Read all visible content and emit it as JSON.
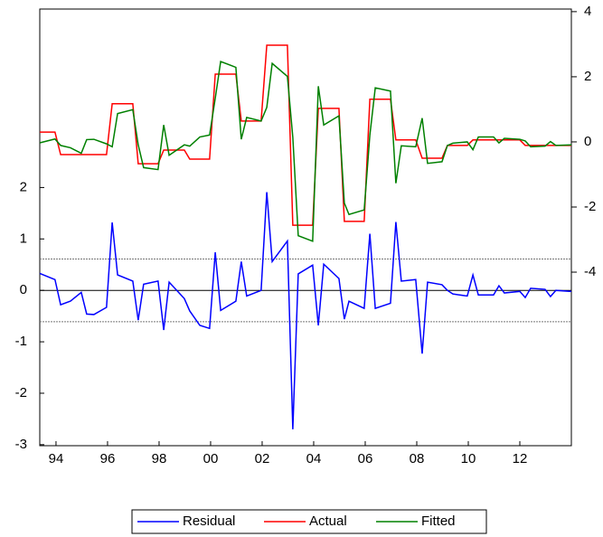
{
  "chart_data": {
    "type": "line",
    "x": [
      1993.87,
      1994.46,
      1994.68,
      1995.06,
      1995.48,
      1995.69,
      1995.97,
      1996.46,
      1996.68,
      1996.89,
      1997.48,
      1997.69,
      1997.9,
      1998.46,
      1998.68,
      1998.89,
      1999.48,
      1999.69,
      2000.08,
      2000.46,
      2000.68,
      2000.89,
      2001.48,
      2001.69,
      2001.9,
      2002.46,
      2002.68,
      2002.89,
      2003.48,
      2003.69,
      2003.9,
      2004.46,
      2004.68,
      2004.89,
      2005.48,
      2005.69,
      2005.87,
      2006.46,
      2006.68,
      2006.89,
      2007.48,
      2007.69,
      2007.9,
      2008.46,
      2008.71,
      2008.92,
      2009.48,
      2009.69,
      2009.9,
      2010.46,
      2010.68,
      2010.89,
      2011.48,
      2011.69,
      2011.9,
      2012.5,
      2012.71,
      2012.92,
      2013.48,
      2013.69,
      2013.9,
      2014.5
    ],
    "series": [
      {
        "name": "Residual",
        "color": "#0000ff",
        "axis": "y",
        "values": [
          0.33,
          0.21,
          -0.28,
          -0.21,
          -0.04,
          -0.46,
          -0.47,
          -0.33,
          1.32,
          0.3,
          0.18,
          -0.58,
          0.12,
          0.18,
          -0.77,
          0.16,
          -0.16,
          -0.4,
          -0.68,
          -0.74,
          0.74,
          -0.39,
          -0.21,
          0.56,
          -0.11,
          0,
          1.91,
          0.56,
          0.96,
          -2.7,
          0.32,
          0.49,
          -0.68,
          0.51,
          0.23,
          -0.56,
          -0.21,
          -0.35,
          1.1,
          -0.35,
          -0.25,
          1.33,
          0.18,
          0.21,
          -1.23,
          0.16,
          0.11,
          0,
          -0.07,
          -0.11,
          0.3,
          -0.09,
          -0.09,
          0.09,
          -0.05,
          -0.02,
          -0.14,
          0.04,
          0.02,
          -0.12,
          0,
          -0.02
        ]
      },
      {
        "name": "Actual",
        "color": "#ff0000",
        "axis": "y2",
        "values": [
          0.3,
          0.3,
          -0.39,
          -0.39,
          -0.39,
          -0.39,
          -0.39,
          -0.39,
          1.17,
          1.17,
          1.17,
          -0.67,
          -0.67,
          -0.67,
          -0.25,
          -0.25,
          -0.25,
          -0.53,
          -0.53,
          -0.53,
          2.08,
          2.08,
          2.08,
          0.64,
          0.64,
          0.64,
          2.97,
          2.97,
          2.97,
          -2.56,
          -2.56,
          -2.56,
          1.03,
          1.03,
          1.03,
          -2.44,
          -2.44,
          -2.44,
          1.31,
          1.31,
          1.31,
          0.06,
          0.06,
          0.06,
          -0.5,
          -0.5,
          -0.5,
          -0.11,
          -0.11,
          -0.11,
          0.06,
          0.06,
          0.06,
          0.06,
          0.06,
          0.06,
          -0.11,
          -0.11,
          -0.11,
          -0.11,
          -0.11,
          -0.11
        ]
      },
      {
        "name": "Fitted",
        "color": "#008000",
        "axis": "y2",
        "values": [
          -0.03,
          0.09,
          -0.11,
          -0.18,
          -0.35,
          0.07,
          0.08,
          -0.06,
          -0.15,
          0.87,
          0.99,
          -0.09,
          -0.79,
          -0.85,
          0.52,
          -0.41,
          -0.09,
          -0.13,
          0.15,
          0.21,
          1.34,
          2.47,
          2.29,
          0.08,
          0.75,
          0.64,
          1.06,
          2.41,
          2.01,
          0.14,
          -2.88,
          -3.05,
          1.71,
          0.52,
          0.8,
          -1.88,
          -2.23,
          -2.09,
          0.21,
          1.66,
          1.56,
          -1.27,
          -0.12,
          -0.15,
          0.73,
          -0.66,
          -0.61,
          -0.11,
          -0.04,
          0,
          -0.24,
          0.15,
          0.15,
          -0.03,
          0.11,
          0.08,
          0.03,
          -0.15,
          -0.13,
          0.01,
          -0.11,
          -0.09
        ]
      }
    ],
    "xlim": [
      1993.87,
      2014.5
    ],
    "xticks": [
      {
        "value": 1994.5,
        "label": "94"
      },
      {
        "value": 1996.5,
        "label": "96"
      },
      {
        "value": 1998.5,
        "label": "98"
      },
      {
        "value": 2000.5,
        "label": "00"
      },
      {
        "value": 2002.5,
        "label": "02"
      },
      {
        "value": 2004.5,
        "label": "04"
      },
      {
        "value": 2006.5,
        "label": "06"
      },
      {
        "value": 2008.5,
        "label": "08"
      },
      {
        "value": 2010.5,
        "label": "10"
      },
      {
        "value": 2012.5,
        "label": "12"
      }
    ],
    "ylim": [
      -3.02,
      5.47
    ],
    "yticks": [
      -3,
      -2,
      -1,
      0,
      1,
      2
    ],
    "y2lim": [
      -9.33,
      4.08
    ],
    "y2ticks": [
      -4,
      -2,
      0,
      2,
      4
    ],
    "reference_lines": [
      {
        "value": 0.61,
        "style": "dotted"
      },
      {
        "value": 0,
        "style": "solid"
      },
      {
        "value": -0.61,
        "style": "dotted"
      }
    ],
    "legend": "bottom"
  }
}
